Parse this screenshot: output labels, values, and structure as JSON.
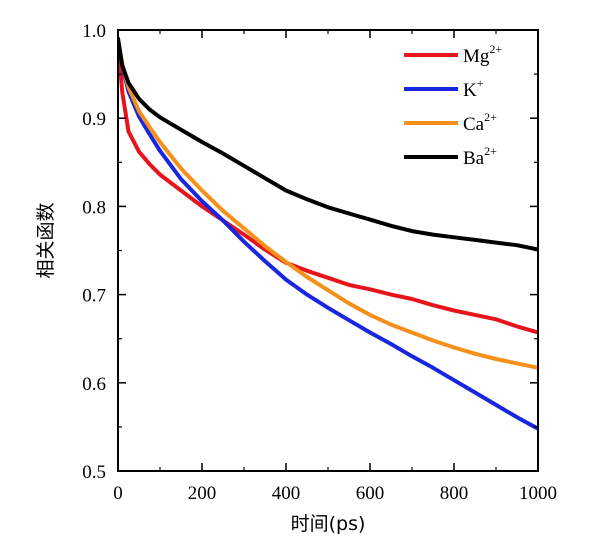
{
  "chart_data": {
    "type": "line",
    "title": "",
    "xlabel": "时间(ps)",
    "ylabel": "相关函数",
    "xlim": [
      0,
      1000
    ],
    "ylim": [
      0.5,
      1.0
    ],
    "x_ticks": [
      "0",
      "200",
      "400",
      "600",
      "800",
      "1000"
    ],
    "y_ticks": [
      "0.5",
      "0.6",
      "0.7",
      "0.8",
      "0.9",
      "1.0"
    ],
    "legend_position": "top-right",
    "series": [
      {
        "name": "Mg2+",
        "label_base": "Mg",
        "label_sup": "2+",
        "color": "#e8141b",
        "x": [
          0,
          10,
          25,
          50,
          75,
          100,
          150,
          200,
          250,
          300,
          350,
          400,
          450,
          500,
          550,
          600,
          650,
          700,
          750,
          800,
          850,
          900,
          950,
          1000
        ],
        "y": [
          0.99,
          0.93,
          0.885,
          0.862,
          0.848,
          0.836,
          0.818,
          0.8,
          0.784,
          0.768,
          0.751,
          0.736,
          0.727,
          0.719,
          0.711,
          0.706,
          0.7,
          0.695,
          0.688,
          0.682,
          0.677,
          0.672,
          0.664,
          0.657
        ]
      },
      {
        "name": "K+",
        "label_base": "K",
        "label_sup": "+",
        "color": "#1826e0",
        "x": [
          0,
          10,
          25,
          50,
          75,
          100,
          150,
          200,
          250,
          300,
          350,
          400,
          450,
          500,
          550,
          600,
          650,
          700,
          750,
          800,
          850,
          900,
          950,
          1000
        ],
        "y": [
          0.99,
          0.96,
          0.93,
          0.902,
          0.882,
          0.863,
          0.831,
          0.806,
          0.784,
          0.76,
          0.738,
          0.717,
          0.7,
          0.685,
          0.671,
          0.657,
          0.644,
          0.63,
          0.617,
          0.603,
          0.589,
          0.575,
          0.561,
          0.548
        ]
      },
      {
        "name": "Ca2+",
        "label_base": "Ca",
        "label_sup": "2+",
        "color": "#f5901a",
        "x": [
          0,
          10,
          25,
          50,
          75,
          100,
          150,
          200,
          250,
          300,
          350,
          400,
          450,
          500,
          550,
          600,
          650,
          700,
          750,
          800,
          850,
          900,
          950,
          1000
        ],
        "y": [
          0.99,
          0.962,
          0.935,
          0.908,
          0.89,
          0.873,
          0.843,
          0.818,
          0.795,
          0.775,
          0.755,
          0.737,
          0.72,
          0.705,
          0.69,
          0.677,
          0.666,
          0.657,
          0.648,
          0.64,
          0.633,
          0.627,
          0.622,
          0.617
        ]
      },
      {
        "name": "Ba2+",
        "label_base": "Ba",
        "label_sup": "2+",
        "color": "#000000",
        "x": [
          0,
          10,
          25,
          50,
          75,
          100,
          150,
          200,
          250,
          300,
          350,
          400,
          450,
          500,
          550,
          600,
          650,
          700,
          750,
          800,
          850,
          900,
          950,
          1000
        ],
        "y": [
          0.99,
          0.96,
          0.94,
          0.922,
          0.91,
          0.901,
          0.887,
          0.873,
          0.86,
          0.846,
          0.832,
          0.818,
          0.808,
          0.799,
          0.792,
          0.785,
          0.778,
          0.772,
          0.768,
          0.765,
          0.762,
          0.759,
          0.756,
          0.751
        ]
      }
    ]
  }
}
